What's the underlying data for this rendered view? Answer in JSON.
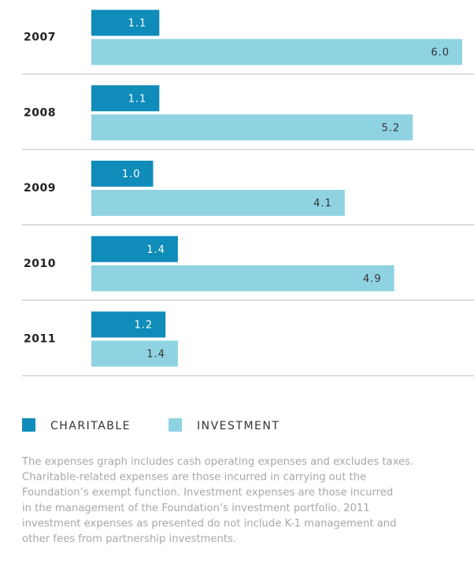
{
  "chart_data": {
    "type": "bar",
    "orientation": "horizontal",
    "categories": [
      "2007",
      "2008",
      "2009",
      "2010",
      "2011"
    ],
    "series": [
      {
        "name": "CHARITABLE",
        "color": "#0f8cb9",
        "values": [
          1.1,
          1.1,
          1.0,
          1.4,
          1.2
        ],
        "value_labels": [
          "1.1",
          "1.1",
          "1.0",
          "1.4",
          "1.2"
        ]
      },
      {
        "name": "INVESTMENT",
        "color": "#8fd3e2",
        "values": [
          6.0,
          5.2,
          4.1,
          4.9,
          1.4
        ],
        "value_labels": [
          "6.0",
          "5.2",
          "4.1",
          "4.9",
          "1.4"
        ]
      }
    ],
    "xlim": [
      0,
      6
    ],
    "note": [
      "The expenses graph includes cash operating expenses and excludes taxes.",
      "Charitable-related expenses are those incurred in carrying out the",
      "Foundation’s exempt function. Investment expenses are those incurred",
      "in the management of the Foundation’s investment portfolio. 2011",
      "investment expenses as presented do not include K-1 management and",
      "other fees from partnership investments."
    ]
  }
}
